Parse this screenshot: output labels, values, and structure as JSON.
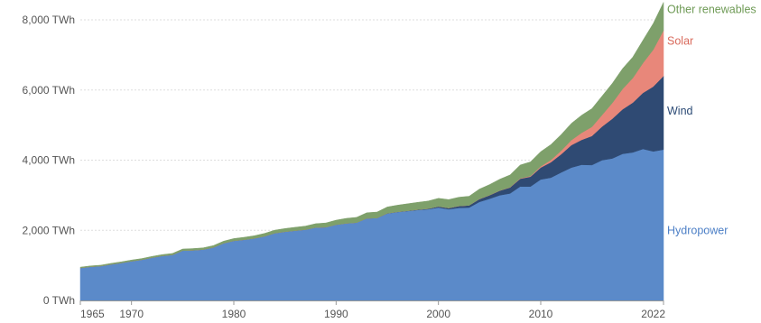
{
  "chart_data": {
    "type": "area",
    "stacked": true,
    "title": "",
    "xlabel": "",
    "ylabel": "",
    "xlim": [
      1965,
      2022
    ],
    "ylim": [
      0,
      8000
    ],
    "grid": true,
    "legend_placement": "right (inline labels)",
    "y_ticks": [
      {
        "value": 0,
        "label": "0 TWh"
      },
      {
        "value": 2000,
        "label": "2,000 TWh"
      },
      {
        "value": 4000,
        "label": "4,000 TWh"
      },
      {
        "value": 6000,
        "label": "6,000 TWh"
      },
      {
        "value": 8000,
        "label": "8,000 TWh"
      }
    ],
    "x_ticks": [
      {
        "value": 1965,
        "label": "1965"
      },
      {
        "value": 1970,
        "label": "1970"
      },
      {
        "value": 1980,
        "label": "1980"
      },
      {
        "value": 1990,
        "label": "1990"
      },
      {
        "value": 2000,
        "label": "2000"
      },
      {
        "value": 2010,
        "label": "2010"
      },
      {
        "value": 2022,
        "label": "2022"
      }
    ],
    "x": [
      1965,
      1966,
      1967,
      1968,
      1969,
      1970,
      1971,
      1972,
      1973,
      1974,
      1975,
      1976,
      1977,
      1978,
      1979,
      1980,
      1981,
      1982,
      1983,
      1984,
      1985,
      1986,
      1987,
      1988,
      1989,
      1990,
      1991,
      1992,
      1993,
      1994,
      1995,
      1996,
      1997,
      1998,
      1999,
      2000,
      2001,
      2002,
      2003,
      2004,
      2005,
      2006,
      2007,
      2008,
      2009,
      2010,
      2011,
      2012,
      2013,
      2014,
      2015,
      2016,
      2017,
      2018,
      2019,
      2020,
      2021,
      2022
    ],
    "series": [
      {
        "name": "Hydropower",
        "color": "#5b8ac9",
        "label_color": "#4c7fc6",
        "values": [
          925,
          960,
          980,
          1030,
          1070,
          1120,
          1160,
          1220,
          1270,
          1300,
          1420,
          1430,
          1450,
          1510,
          1630,
          1700,
          1730,
          1770,
          1830,
          1920,
          1960,
          1990,
          2020,
          2080,
          2090,
          2160,
          2200,
          2220,
          2340,
          2350,
          2480,
          2520,
          2550,
          2580,
          2600,
          2650,
          2600,
          2640,
          2650,
          2810,
          2900,
          3000,
          3050,
          3250,
          3250,
          3450,
          3500,
          3650,
          3790,
          3870,
          3860,
          4000,
          4050,
          4180,
          4220,
          4320,
          4250,
          4300
        ]
      },
      {
        "name": "Wind",
        "color": "#2f4a73",
        "label_color": "#2b4a75",
        "values": [
          0,
          0,
          0,
          0,
          0,
          0,
          0,
          0,
          0,
          0,
          0,
          0,
          0,
          0,
          0,
          0,
          0,
          0,
          0,
          0,
          0,
          0,
          0,
          0,
          0,
          0,
          0,
          0,
          0,
          0,
          5,
          6,
          8,
          10,
          15,
          30,
          35,
          50,
          60,
          80,
          100,
          130,
          170,
          220,
          280,
          340,
          440,
          520,
          640,
          710,
          830,
          960,
          1130,
          1270,
          1420,
          1600,
          1850,
          2100
        ]
      },
      {
        "name": "Solar",
        "color": "#e8877a",
        "label_color": "#d96a5c",
        "values": [
          0,
          0,
          0,
          0,
          0,
          0,
          0,
          0,
          0,
          0,
          0,
          0,
          0,
          0,
          0,
          0,
          0,
          0,
          0,
          0,
          0,
          0,
          0,
          0,
          0,
          0,
          0,
          0,
          0,
          0,
          0,
          0,
          0,
          0,
          0,
          1,
          1,
          2,
          2,
          3,
          4,
          6,
          8,
          12,
          20,
          33,
          65,
          100,
          140,
          200,
          260,
          330,
          450,
          580,
          700,
          850,
          1050,
          1300
        ]
      },
      {
        "name": "Other renewables",
        "color": "#7ea06b",
        "label_color": "#6e9a55",
        "values": [
          25,
          26,
          27,
          28,
          30,
          32,
          34,
          36,
          38,
          40,
          45,
          48,
          50,
          55,
          60,
          65,
          70,
          75,
          80,
          85,
          90,
          95,
          100,
          110,
          120,
          130,
          140,
          150,
          160,
          170,
          180,
          190,
          200,
          210,
          220,
          230,
          240,
          250,
          260,
          280,
          300,
          320,
          350,
          380,
          400,
          420,
          440,
          460,
          480,
          500,
          520,
          540,
          560,
          580,
          600,
          650,
          750,
          800
        ]
      }
    ]
  }
}
